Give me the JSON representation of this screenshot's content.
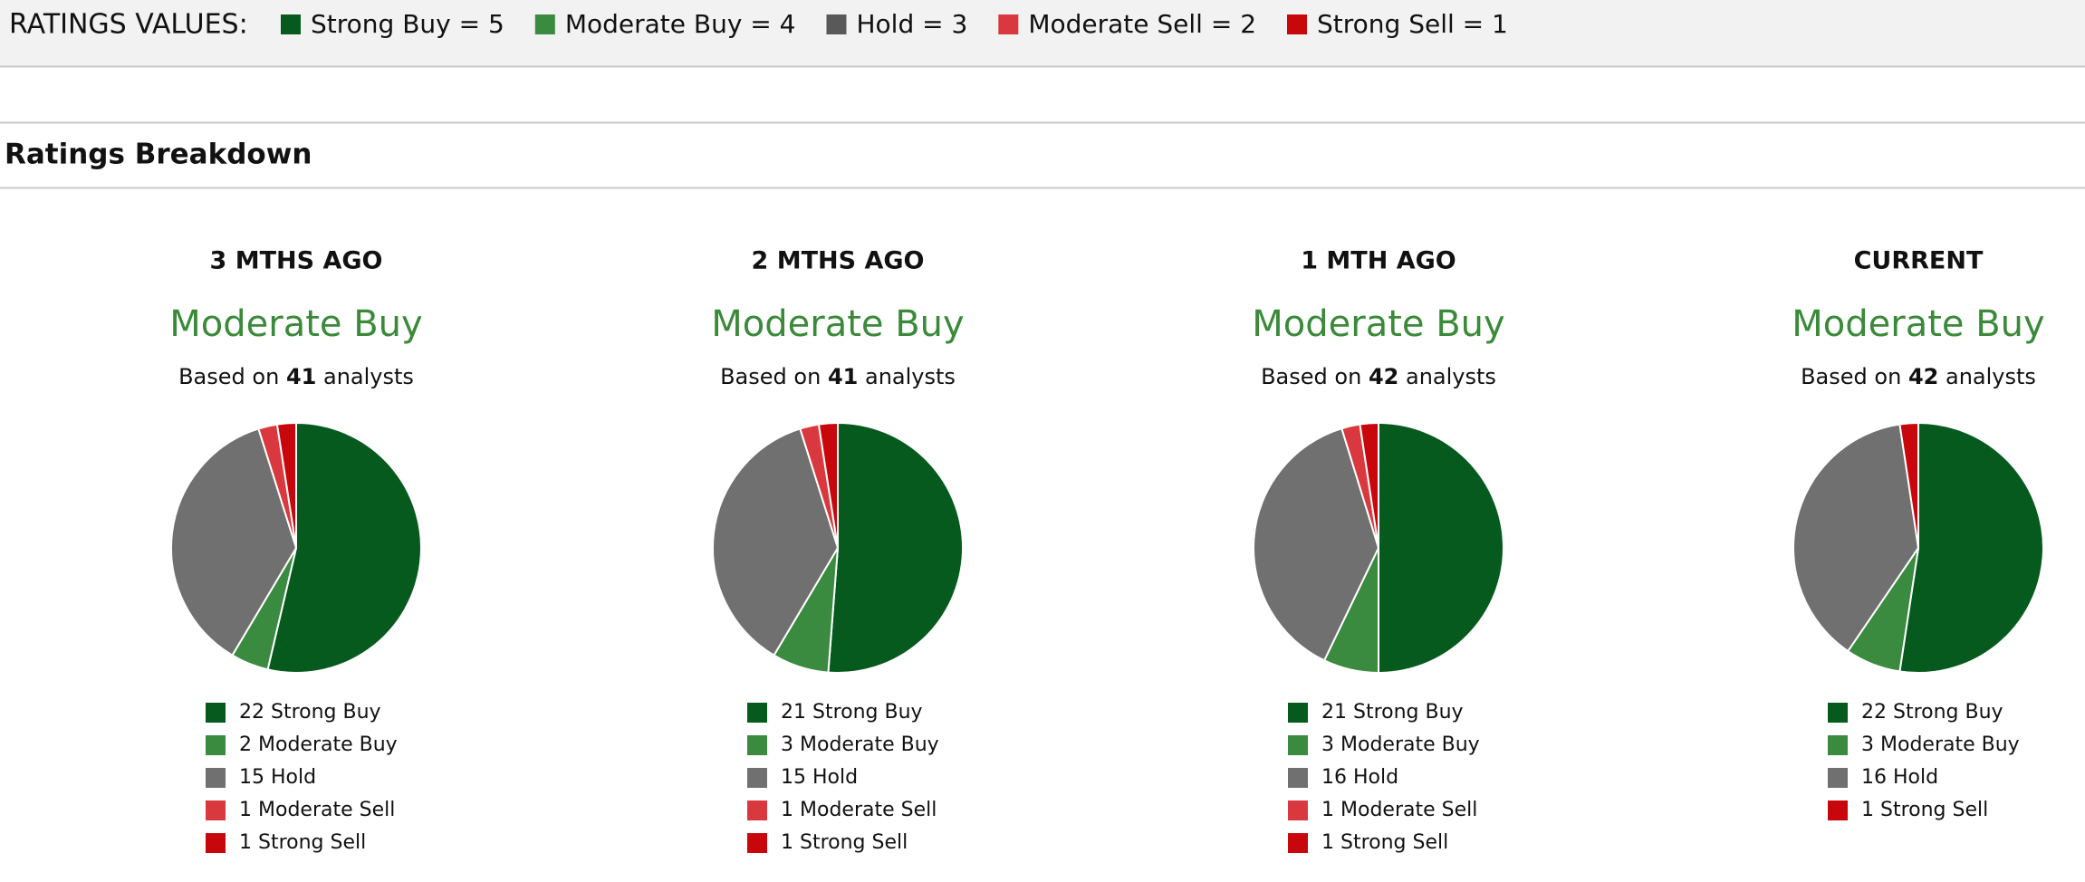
{
  "header": {
    "label": "RATINGS VALUES:",
    "items": [
      {
        "label": "Strong Buy = 5",
        "color": "#065a1e"
      },
      {
        "label": "Moderate Buy = 4",
        "color": "#3a8a3f"
      },
      {
        "label": "Hold = 3",
        "color": "#595959"
      },
      {
        "label": "Moderate Sell = 2",
        "color": "#d9393e"
      },
      {
        "label": "Strong Sell = 1",
        "color": "#c8070d"
      }
    ]
  },
  "section_title": "Ratings Breakdown",
  "chart_data": [
    {
      "type": "pie",
      "title": "3 MTHS AGO",
      "consensus": "Moderate Buy",
      "subtitle_prefix": "Based on",
      "analyst_count": 41,
      "subtitle_suffix": "analysts",
      "categories": [
        "Strong Buy",
        "Moderate Buy",
        "Hold",
        "Moderate Sell",
        "Strong Sell"
      ],
      "values": [
        22,
        2,
        15,
        1,
        1
      ],
      "colors": [
        "#065a1e",
        "#3a8a3f",
        "#707070",
        "#d9393e",
        "#c8070d"
      ]
    },
    {
      "type": "pie",
      "title": "2 MTHS AGO",
      "consensus": "Moderate Buy",
      "subtitle_prefix": "Based on",
      "analyst_count": 41,
      "subtitle_suffix": "analysts",
      "categories": [
        "Strong Buy",
        "Moderate Buy",
        "Hold",
        "Moderate Sell",
        "Strong Sell"
      ],
      "values": [
        21,
        3,
        15,
        1,
        1
      ],
      "colors": [
        "#065a1e",
        "#3a8a3f",
        "#707070",
        "#d9393e",
        "#c8070d"
      ]
    },
    {
      "type": "pie",
      "title": "1 MTH AGO",
      "consensus": "Moderate Buy",
      "subtitle_prefix": "Based on",
      "analyst_count": 42,
      "subtitle_suffix": "analysts",
      "categories": [
        "Strong Buy",
        "Moderate Buy",
        "Hold",
        "Moderate Sell",
        "Strong Sell"
      ],
      "values": [
        21,
        3,
        16,
        1,
        1
      ],
      "colors": [
        "#065a1e",
        "#3a8a3f",
        "#707070",
        "#d9393e",
        "#c8070d"
      ]
    },
    {
      "type": "pie",
      "title": "CURRENT",
      "consensus": "Moderate Buy",
      "subtitle_prefix": "Based on",
      "analyst_count": 42,
      "subtitle_suffix": "analysts",
      "categories": [
        "Strong Buy",
        "Moderate Buy",
        "Hold",
        "Strong Sell"
      ],
      "values": [
        22,
        3,
        16,
        1
      ],
      "colors": [
        "#065a1e",
        "#3a8a3f",
        "#707070",
        "#c8070d"
      ]
    }
  ]
}
